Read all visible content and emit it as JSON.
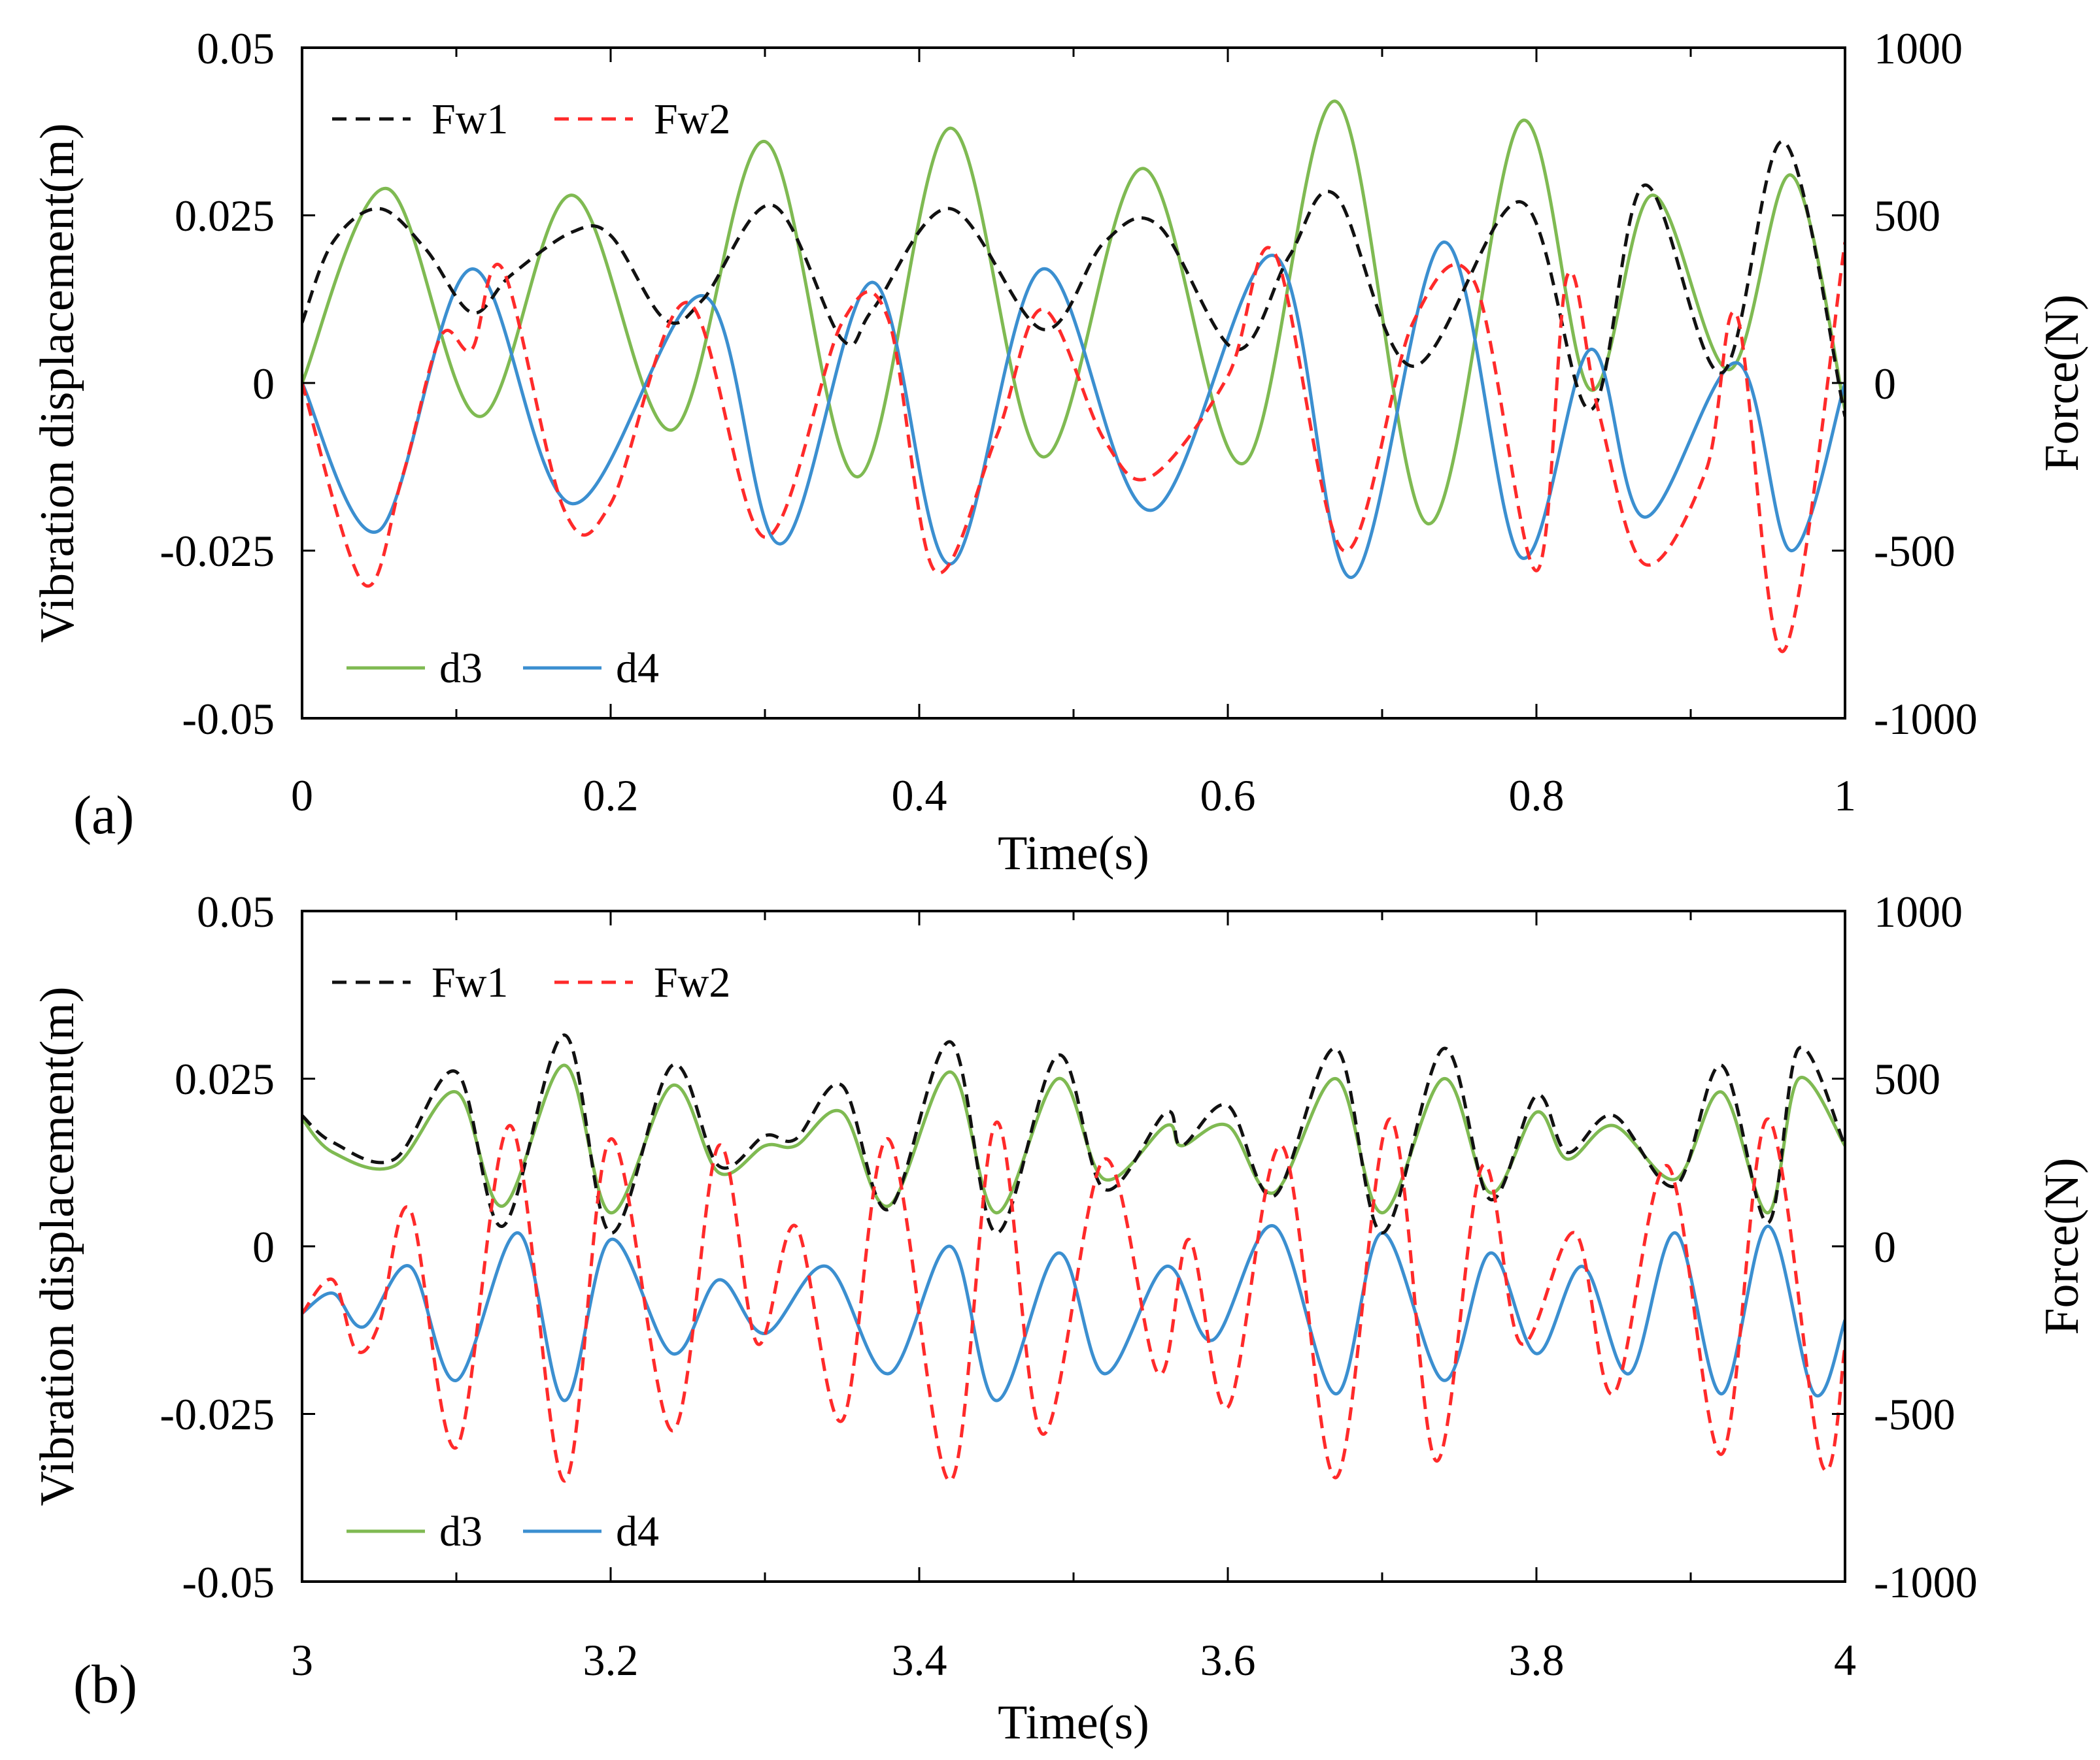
{
  "colors": {
    "d3": "#7fba52",
    "d4": "#3b8fd0",
    "fw1": "#111111",
    "fw2": "#ff2a2a"
  },
  "chart_data": [
    {
      "type": "line",
      "panel_label": "(a)",
      "xlabel": "Time(s)",
      "ylabel_left": "Vibration displacement(m)",
      "ylabel_right": "Force(N)",
      "xlim": [
        0,
        1
      ],
      "ylim_left": [
        -0.05,
        0.05
      ],
      "ylim_right": [
        -1000,
        1000
      ],
      "x_ticks": [
        "0",
        "0.2",
        "0.4",
        "0.6",
        "0.8",
        "1"
      ],
      "y_left_ticks": [
        "0.05",
        "0.025",
        "0",
        "-0.025",
        "-0.05"
      ],
      "y_right_ticks": [
        "1000",
        "500",
        "0",
        "-500",
        "-1000"
      ],
      "legend_top": [
        "Fw1",
        "Fw2"
      ],
      "legend_bottom": [
        "d3",
        "d4"
      ],
      "series": [
        {
          "name": "d3",
          "axis": "left",
          "style": "solid",
          "x": [
            0,
            0.055,
            0.115,
            0.175,
            0.24,
            0.3,
            0.36,
            0.42,
            0.48,
            0.545,
            0.61,
            0.67,
            0.73,
            0.79,
            0.835,
            0.875,
            0.925,
            0.965,
            1.0
          ],
          "y": [
            0,
            0.029,
            -0.005,
            0.028,
            -0.007,
            0.036,
            -0.014,
            0.038,
            -0.011,
            0.032,
            -0.012,
            0.042,
            -0.021,
            0.039,
            -0.001,
            0.028,
            0.002,
            0.031,
            -0.004
          ]
        },
        {
          "name": "d4",
          "axis": "left",
          "style": "solid",
          "x": [
            0,
            0.05,
            0.11,
            0.175,
            0.26,
            0.31,
            0.37,
            0.42,
            0.48,
            0.55,
            0.63,
            0.68,
            0.74,
            0.79,
            0.835,
            0.87,
            0.93,
            0.965,
            1.0
          ],
          "y": [
            0,
            -0.022,
            0.017,
            -0.018,
            0.013,
            -0.024,
            0.015,
            -0.027,
            0.017,
            -0.019,
            0.019,
            -0.029,
            0.021,
            -0.026,
            0.005,
            -0.02,
            0.003,
            -0.025,
            0.0
          ]
        },
        {
          "name": "Fw1",
          "axis": "right",
          "style": "dashed",
          "x": [
            0,
            0.02,
            0.05,
            0.08,
            0.11,
            0.135,
            0.175,
            0.2,
            0.235,
            0.26,
            0.305,
            0.35,
            0.37,
            0.42,
            0.48,
            0.52,
            0.555,
            0.605,
            0.64,
            0.67,
            0.72,
            0.79,
            0.835,
            0.87,
            0.92,
            0.96,
            1.0
          ],
          "y": [
            180,
            420,
            520,
            400,
            210,
            320,
            450,
            440,
            190,
            250,
            530,
            130,
            220,
            520,
            160,
            420,
            470,
            100,
            380,
            560,
            50,
            540,
            -80,
            590,
            30,
            720,
            -100
          ]
        },
        {
          "name": "Fw2",
          "axis": "right",
          "style": "dashed",
          "x": [
            0,
            0.04,
            0.065,
            0.09,
            0.11,
            0.13,
            0.17,
            0.2,
            0.25,
            0.3,
            0.35,
            0.38,
            0.41,
            0.45,
            0.48,
            0.52,
            0.55,
            0.6,
            0.63,
            0.675,
            0.72,
            0.76,
            0.8,
            0.82,
            0.84,
            0.87,
            0.91,
            0.93,
            0.96,
            1.0
          ],
          "y": [
            0,
            -600,
            -280,
            140,
            100,
            340,
            -380,
            -360,
            240,
            -460,
            180,
            190,
            -560,
            -160,
            220,
            -170,
            -280,
            20,
            390,
            -500,
            180,
            300,
            -560,
            320,
            -80,
            -540,
            -260,
            200,
            -800,
            420
          ]
        }
      ]
    },
    {
      "type": "line",
      "panel_label": "(b)",
      "xlabel": "Time(s)",
      "ylabel_left": "Vibration displacement(m)",
      "ylabel_right": "Force(N)",
      "xlim": [
        3,
        4
      ],
      "ylim_left": [
        -0.05,
        0.05
      ],
      "ylim_right": [
        -1000,
        1000
      ],
      "x_ticks": [
        "3",
        "3.2",
        "3.4",
        "3.6",
        "3.8",
        "4"
      ],
      "y_left_ticks": [
        "0.05",
        "0.025",
        "0",
        "-0.025",
        "-0.05"
      ],
      "y_right_ticks": [
        "1000",
        "500",
        "0",
        "-500",
        "-1000"
      ],
      "legend_top": [
        "Fw1",
        "Fw2"
      ],
      "legend_bottom": [
        "d3",
        "d4"
      ],
      "series": [
        {
          "name": "d3",
          "axis": "left",
          "style": "solid",
          "x": [
            3.0,
            3.02,
            3.06,
            3.1,
            3.13,
            3.17,
            3.2,
            3.24,
            3.27,
            3.3,
            3.32,
            3.35,
            3.38,
            3.42,
            3.45,
            3.49,
            3.52,
            3.56,
            3.57,
            3.6,
            3.63,
            3.67,
            3.7,
            3.74,
            3.77,
            3.8,
            3.82,
            3.85,
            3.89,
            3.92,
            3.95,
            3.97,
            4.0
          ],
          "y": [
            0.019,
            0.014,
            0.012,
            0.023,
            0.006,
            0.027,
            0.005,
            0.024,
            0.011,
            0.015,
            0.015,
            0.02,
            0.006,
            0.026,
            0.005,
            0.025,
            0.01,
            0.018,
            0.015,
            0.018,
            0.008,
            0.025,
            0.005,
            0.025,
            0.008,
            0.02,
            0.013,
            0.018,
            0.01,
            0.023,
            0.005,
            0.025,
            0.015
          ]
        },
        {
          "name": "d4",
          "axis": "left",
          "style": "solid",
          "x": [
            3.0,
            3.02,
            3.04,
            3.07,
            3.1,
            3.14,
            3.17,
            3.2,
            3.24,
            3.27,
            3.3,
            3.34,
            3.38,
            3.42,
            3.45,
            3.49,
            3.52,
            3.56,
            3.59,
            3.63,
            3.67,
            3.7,
            3.74,
            3.77,
            3.8,
            3.83,
            3.86,
            3.89,
            3.92,
            3.95,
            3.98,
            4.0
          ],
          "y": [
            -0.01,
            -0.007,
            -0.012,
            -0.003,
            -0.02,
            0.002,
            -0.023,
            0.001,
            -0.016,
            -0.005,
            -0.013,
            -0.003,
            -0.019,
            0.0,
            -0.023,
            -0.001,
            -0.019,
            -0.003,
            -0.014,
            0.003,
            -0.022,
            0.002,
            -0.02,
            -0.001,
            -0.016,
            -0.003,
            -0.019,
            0.002,
            -0.022,
            0.003,
            -0.022,
            -0.011
          ]
        },
        {
          "name": "Fw1",
          "axis": "right",
          "style": "dashed",
          "x": [
            3.0,
            3.02,
            3.06,
            3.1,
            3.13,
            3.17,
            3.2,
            3.24,
            3.27,
            3.3,
            3.32,
            3.35,
            3.38,
            3.42,
            3.45,
            3.49,
            3.52,
            3.56,
            3.57,
            3.6,
            3.63,
            3.67,
            3.7,
            3.74,
            3.77,
            3.8,
            3.82,
            3.85,
            3.89,
            3.92,
            3.95,
            3.97,
            4.0
          ],
          "y": [
            390,
            310,
            260,
            520,
            60,
            630,
            40,
            540,
            240,
            330,
            320,
            480,
            110,
            610,
            40,
            570,
            170,
            400,
            300,
            420,
            150,
            590,
            40,
            590,
            140,
            450,
            280,
            390,
            180,
            540,
            70,
            590,
            300
          ]
        },
        {
          "name": "Fw2",
          "axis": "right",
          "style": "dashed",
          "x": [
            3.0,
            3.02,
            3.035,
            3.05,
            3.07,
            3.1,
            3.135,
            3.17,
            3.2,
            3.24,
            3.27,
            3.295,
            3.32,
            3.35,
            3.38,
            3.42,
            3.45,
            3.48,
            3.52,
            3.555,
            3.575,
            3.6,
            3.635,
            3.67,
            3.705,
            3.735,
            3.765,
            3.79,
            3.825,
            3.85,
            3.885,
            3.92,
            3.95,
            3.985,
            4.0
          ],
          "y": [
            -200,
            -100,
            -310,
            -230,
            110,
            -600,
            360,
            -700,
            320,
            -550,
            300,
            -290,
            60,
            -520,
            320,
            -700,
            370,
            -560,
            260,
            -380,
            20,
            -480,
            300,
            -690,
            380,
            -640,
            240,
            -290,
            40,
            -440,
            240,
            -620,
            380,
            -650,
            -300
          ]
        }
      ]
    }
  ]
}
